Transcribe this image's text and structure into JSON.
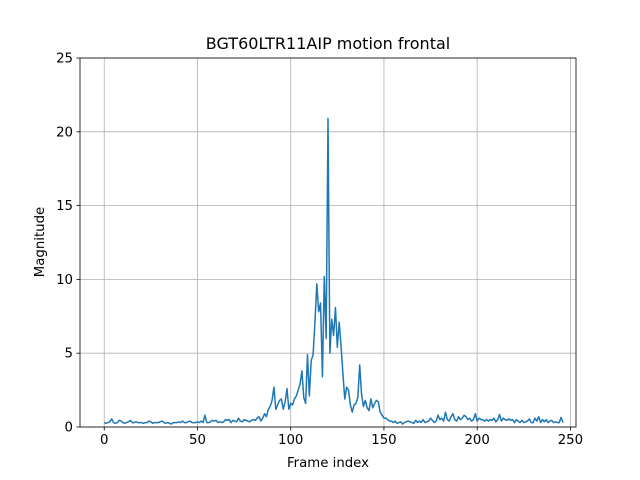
{
  "chart_data": {
    "type": "line",
    "title": "BGT60LTR11AIP motion frontal",
    "xlabel": "Frame index",
    "ylabel": "Magnitude",
    "xlim": [
      -13,
      253
    ],
    "ylim": [
      0,
      25
    ],
    "xticks": [
      0,
      50,
      100,
      150,
      200,
      250
    ],
    "yticks": [
      0,
      5,
      10,
      15,
      20,
      25
    ],
    "grid": true,
    "series": [
      {
        "color": "#1f77b4",
        "values": [
          0.3,
          0.25,
          0.3,
          0.35,
          0.55,
          0.3,
          0.25,
          0.3,
          0.45,
          0.4,
          0.3,
          0.25,
          0.3,
          0.35,
          0.45,
          0.3,
          0.3,
          0.35,
          0.3,
          0.3,
          0.3,
          0.25,
          0.3,
          0.3,
          0.4,
          0.35,
          0.25,
          0.3,
          0.3,
          0.3,
          0.35,
          0.4,
          0.3,
          0.25,
          0.3,
          0.25,
          0.2,
          0.3,
          0.3,
          0.3,
          0.35,
          0.3,
          0.4,
          0.3,
          0.3,
          0.35,
          0.4,
          0.3,
          0.3,
          0.3,
          0.35,
          0.3,
          0.4,
          0.3,
          0.8,
          0.3,
          0.3,
          0.35,
          0.45,
          0.4,
          0.45,
          0.3,
          0.35,
          0.3,
          0.35,
          0.5,
          0.45,
          0.5,
          0.3,
          0.45,
          0.4,
          0.35,
          0.6,
          0.4,
          0.35,
          0.5,
          0.45,
          0.4,
          0.35,
          0.45,
          0.5,
          0.45,
          0.6,
          0.7,
          0.4,
          0.6,
          0.9,
          0.7,
          1.2,
          1.4,
          1.8,
          2.7,
          1.2,
          1.5,
          1.8,
          1.9,
          1.2,
          1.7,
          2.6,
          1.2,
          1.6,
          1.5,
          1.9,
          2.1,
          2.5,
          2.9,
          3.8,
          2.0,
          1.6,
          4.9,
          2.1,
          4.5,
          4.9,
          7.1,
          9.7,
          7.8,
          8.4,
          3.4,
          10.2,
          6.0,
          20.9,
          5.0,
          7.3,
          6.2,
          8.1,
          5.4,
          7.1,
          5.5,
          3.6,
          1.9,
          2.7,
          2.5,
          1.5,
          1.0,
          1.5,
          1.6,
          2.0,
          4.2,
          2.2,
          1.4,
          1.8,
          1.3,
          1.1,
          1.9,
          1.3,
          1.6,
          1.8,
          1.7,
          1.0,
          0.8,
          0.6,
          0.6,
          0.5,
          0.4,
          0.4,
          0.3,
          0.4,
          0.25,
          0.3,
          0.35,
          0.2,
          0.3,
          0.35,
          0.4,
          0.35,
          0.3,
          0.25,
          0.45,
          0.3,
          0.4,
          0.3,
          0.5,
          0.3,
          0.35,
          0.4,
          0.6,
          0.45,
          0.3,
          0.4,
          0.8,
          0.5,
          0.6,
          0.4,
          1.0,
          0.5,
          0.4,
          0.7,
          0.9,
          0.5,
          0.4,
          0.7,
          0.5,
          0.6,
          0.8,
          0.7,
          0.5,
          0.6,
          0.4,
          0.5,
          0.9,
          0.4,
          0.6,
          0.5,
          0.5,
          0.4,
          0.5,
          0.4,
          0.5,
          0.45,
          0.6,
          0.35,
          0.5,
          0.85,
          0.4,
          0.6,
          0.5,
          0.45,
          0.55,
          0.45,
          0.5,
          0.3,
          0.5,
          0.4,
          0.3,
          0.45,
          0.3,
          0.35,
          0.4,
          0.55,
          0.3,
          0.3,
          0.6,
          0.4,
          0.7,
          0.3,
          0.5,
          0.35,
          0.5,
          0.3,
          0.4,
          0.45,
          0.3,
          0.35,
          0.3,
          0.3,
          0.65,
          0.3
        ]
      }
    ]
  }
}
